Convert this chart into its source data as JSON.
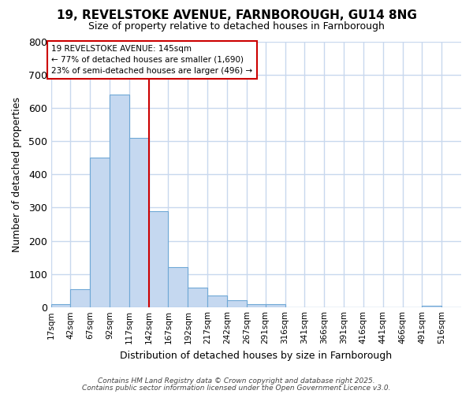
{
  "title1": "19, REVELSTOKE AVENUE, FARNBOROUGH, GU14 8NG",
  "title2": "Size of property relative to detached houses in Farnborough",
  "xlabel": "Distribution of detached houses by size in Farnborough",
  "ylabel": "Number of detached properties",
  "annotation_title": "19 REVELSTOKE AVENUE: 145sqm",
  "annotation_line1": "← 77% of detached houses are smaller (1,690)",
  "annotation_line2": "23% of semi-detached houses are larger (496) →",
  "bar_color": "#c5d8f0",
  "bar_edge_color": "#6fa8d6",
  "bg_color": "#ffffff",
  "plot_bg_color": "#ffffff",
  "grid_color": "#c8d8ee",
  "vline_color": "#cc0000",
  "annotation_box_color": "#cc0000",
  "bins": [
    "17sqm",
    "42sqm",
    "67sqm",
    "92sqm",
    "117sqm",
    "142sqm",
    "167sqm",
    "192sqm",
    "217sqm",
    "242sqm",
    "267sqm",
    "291sqm",
    "316sqm",
    "341sqm",
    "366sqm",
    "391sqm",
    "416sqm",
    "441sqm",
    "466sqm",
    "491sqm",
    "516sqm"
  ],
  "bin_edges": [
    17,
    42,
    67,
    92,
    117,
    142,
    167,
    192,
    217,
    242,
    267,
    291,
    316,
    341,
    366,
    391,
    416,
    441,
    466,
    491,
    516
  ],
  "heights": [
    10,
    55,
    450,
    640,
    510,
    290,
    120,
    60,
    35,
    20,
    10,
    10,
    0,
    0,
    0,
    0,
    0,
    0,
    0,
    5,
    0
  ],
  "vline_x": 142,
  "ylim": [
    0,
    800
  ],
  "yticks": [
    0,
    100,
    200,
    300,
    400,
    500,
    600,
    700,
    800
  ],
  "footnote1": "Contains HM Land Registry data © Crown copyright and database right 2025.",
  "footnote2": "Contains public sector information licensed under the Open Government Licence v3.0."
}
